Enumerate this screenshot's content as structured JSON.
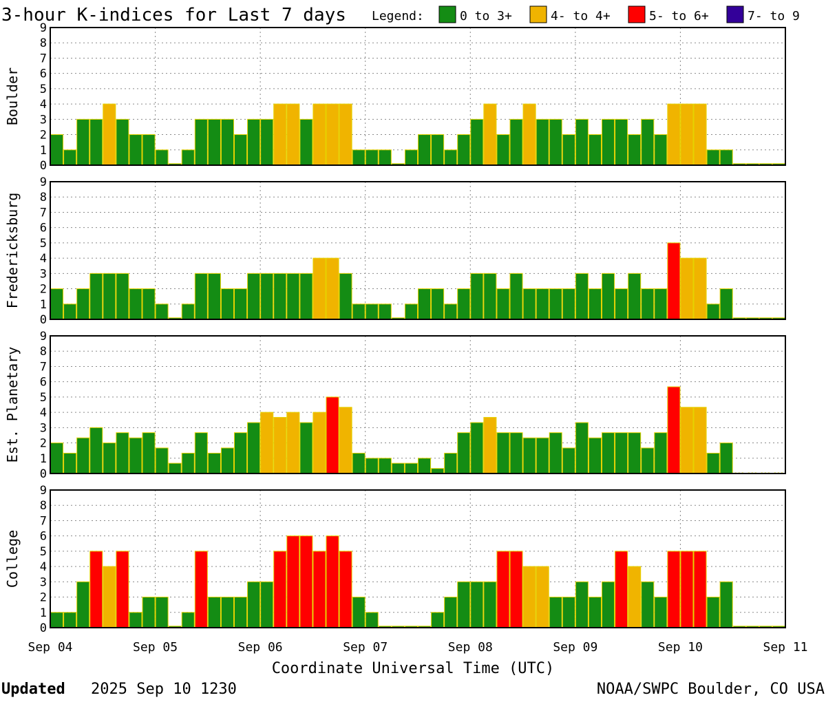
{
  "chart_data": {
    "type": "bar",
    "title": "3-hour K-indices for Last 7 days",
    "legend": {
      "label": "Legend:",
      "placement": "top-right",
      "entries": [
        {
          "label": "0 to 3+",
          "color": "#148c14"
        },
        {
          "label": "4- to 4+",
          "color": "#f0b400"
        },
        {
          "label": "5- to 6+",
          "color": "#ff0000"
        },
        {
          "label": "7- to 9",
          "color": "#330099"
        }
      ]
    },
    "ylim": [
      0,
      9
    ],
    "yticks": [
      "0",
      "1",
      "2",
      "3",
      "4",
      "5",
      "6",
      "7",
      "8",
      "9"
    ],
    "xlabel": "Coordinate Universal Time (UTC)",
    "x_ticks": [
      "Sep 04",
      "Sep 05",
      "Sep 06",
      "Sep 07",
      "Sep 08",
      "Sep 09",
      "Sep 10",
      "Sep 11"
    ],
    "bars_per_panel": 56,
    "grid": true,
    "panels": [
      {
        "name": "Boulder",
        "values": [
          2,
          1,
          3,
          3,
          4,
          3,
          2,
          2,
          1,
          0.1,
          1,
          3,
          3,
          3,
          2,
          3,
          3,
          4,
          4,
          3,
          4,
          4,
          4,
          1,
          1,
          1,
          0.1,
          1,
          2,
          2,
          1,
          2,
          3,
          4,
          2,
          3,
          4,
          3,
          3,
          2,
          3,
          2,
          3,
          3,
          2,
          3,
          2,
          4,
          4,
          4,
          1,
          1,
          0.1,
          0.1,
          0.1,
          0.1
        ]
      },
      {
        "name": "Fredericksburg",
        "values": [
          2,
          1,
          2,
          3,
          3,
          3,
          2,
          2,
          1,
          0.1,
          1,
          3,
          3,
          2,
          2,
          3,
          3,
          3,
          3,
          3,
          4,
          4,
          3,
          1,
          1,
          1,
          0.1,
          1,
          2,
          2,
          1,
          2,
          3,
          3,
          2,
          3,
          2,
          2,
          2,
          2,
          3,
          2,
          3,
          2,
          3,
          2,
          2,
          5,
          4,
          4,
          1,
          2,
          0.1,
          0.1,
          0.1,
          0.1
        ]
      },
      {
        "name": "Est. Planetary",
        "values": [
          2,
          1.33,
          2.33,
          3,
          2,
          2.67,
          2.33,
          2.67,
          1.67,
          0.67,
          1.33,
          2.67,
          1.33,
          1.67,
          2.67,
          3.33,
          4,
          3.67,
          4,
          3.33,
          4,
          5,
          4.33,
          1.33,
          1,
          1,
          0.67,
          0.67,
          1,
          0.33,
          1.33,
          2.67,
          3.33,
          3.67,
          2.67,
          2.67,
          2.33,
          2.33,
          2.67,
          1.67,
          3.33,
          2.33,
          2.67,
          2.67,
          2.67,
          1.67,
          2.67,
          5.67,
          4.33,
          4.33,
          1.33,
          2,
          0,
          0,
          0,
          0
        ]
      },
      {
        "name": "College",
        "values": [
          1,
          1,
          3,
          5,
          4,
          5,
          1,
          2,
          2,
          0.1,
          1,
          5,
          2,
          2,
          2,
          3,
          3,
          5,
          6,
          6,
          5,
          6,
          5,
          2,
          1,
          0.1,
          0.1,
          0.1,
          0.1,
          1,
          2,
          3,
          3,
          3,
          5,
          5,
          4,
          4,
          2,
          2,
          3,
          2,
          3,
          5,
          4,
          3,
          2,
          5,
          5,
          5,
          2,
          3,
          0.1,
          0.1,
          0.1,
          0.1
        ]
      }
    ]
  },
  "footer": {
    "updated_label": "Updated",
    "updated_value": "2025 Sep 10 1230",
    "source": "NOAA/SWPC Boulder, CO USA"
  }
}
